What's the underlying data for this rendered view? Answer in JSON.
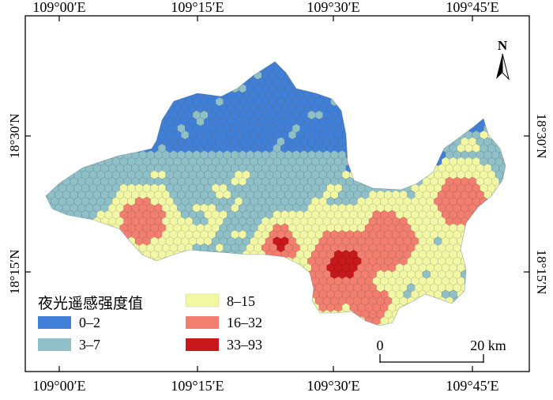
{
  "map": {
    "top_ticks": [
      "109°00′E",
      "109°15′E",
      "109°30′E",
      "109°45′E"
    ],
    "bottom_ticks": [
      "109°00′E",
      "109°15′E",
      "109°30′E",
      "109°45′E"
    ],
    "left_ticks": [
      "18°30′N",
      "18°15′N"
    ],
    "right_ticks": [
      "18°30′N",
      "18°15′N"
    ]
  },
  "legend": {
    "title": "夜光遥感强度值",
    "classes": [
      {
        "label": "0–2",
        "color": "#3f7fd8"
      },
      {
        "label": "3–7",
        "color": "#8fbfc7"
      },
      {
        "label": "8–15",
        "color": "#f2f7a4"
      },
      {
        "label": "16–32",
        "color": "#f17e6e"
      },
      {
        "label": "33–93",
        "color": "#c8181b"
      }
    ]
  },
  "scale_bar": {
    "start": "0",
    "end": "20 km"
  },
  "north_arrow": {
    "label": "N"
  }
}
